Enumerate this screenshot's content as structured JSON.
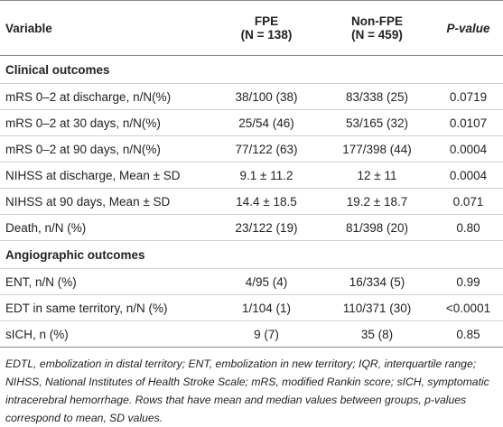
{
  "table": {
    "columns": [
      {
        "name": "Variable"
      },
      {
        "name": "FPE",
        "n": "(N = 138)"
      },
      {
        "name": "Non-FPE",
        "n": "(N = 459)"
      },
      {
        "name": "P-value"
      }
    ],
    "sections": [
      {
        "title": "Clinical outcomes",
        "rows": [
          [
            "mRS 0–2 at discharge, n/N(%)",
            "38/100 (38)",
            "83/338 (25)",
            "0.0719"
          ],
          [
            "mRS 0–2 at 30 days, n/N(%)",
            "25/54 (46)",
            "53/165 (32)",
            "0.0107"
          ],
          [
            "mRS 0–2 at 90 days, n/N(%)",
            "77/122 (63)",
            "177/398 (44)",
            "0.0004"
          ],
          [
            "NIHSS at discharge, Mean ± SD",
            "9.1 ± 11.2",
            "12 ± 11",
            "0.0004"
          ],
          [
            "NIHSS at 90 days, Mean ± SD",
            "14.4 ± 18.5",
            "19.2 ± 18.7",
            "0.071"
          ],
          [
            "Death, n/N (%)",
            "23/122 (19)",
            "81/398 (20)",
            "0.80"
          ]
        ]
      },
      {
        "title": "Angiographic outcomes",
        "rows": [
          [
            "ENT, n/N (%)",
            "4/95 (4)",
            "16/334 (5)",
            "0.99"
          ],
          [
            "EDT in same territory, n/N (%)",
            "1/104 (1)",
            "110/371 (30)",
            "<0.0001"
          ],
          [
            "sICH, n (%)",
            "9 (7)",
            "35 (8)",
            "0.85"
          ]
        ]
      }
    ],
    "footnote": "EDTL, embolization in distal territory; ENT, embolization in new territory; IQR, interquartile range; NIHSS, National Institutes of Health Stroke Scale; mRS, modified Rankin score; sICH, symptomatic intracerebral hemorrhage. Rows that have mean and median values between groups, p-values correspond to mean, SD values."
  }
}
